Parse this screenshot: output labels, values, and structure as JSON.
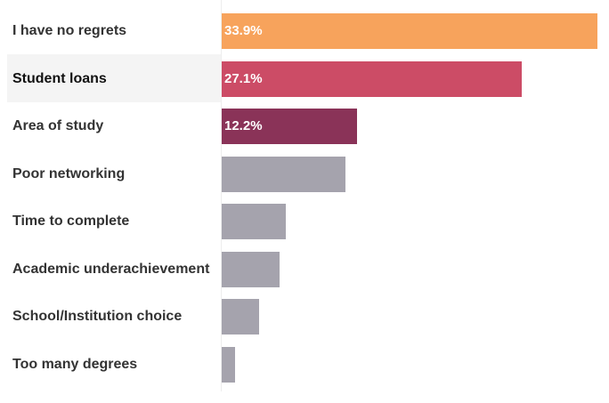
{
  "chart_data": {
    "type": "bar",
    "orientation": "horizontal",
    "categories": [
      "I have no regrets",
      "Student loans",
      "Area of study",
      "Poor networking",
      "Time to complete",
      "Academic underachievement",
      "School/Institution choice",
      "Too many degrees"
    ],
    "values": [
      33.9,
      27.1,
      12.2,
      11.2,
      5.8,
      5.2,
      3.4,
      1.2
    ],
    "data_labels": [
      "33.9%",
      "27.1%",
      "12.2%",
      "",
      "",
      "",
      "",
      ""
    ],
    "bar_colors": [
      "#f7a35c",
      "#cc4c66",
      "#8a3358",
      "#a5a3ad",
      "#a5a3ad",
      "#a5a3ad",
      "#a5a3ad",
      "#a5a3ad"
    ],
    "highlighted_category": "Student loans",
    "highlight_color": "#f4f4f4",
    "xlim": [
      0,
      33.9
    ],
    "grid": false,
    "legend": "none"
  }
}
